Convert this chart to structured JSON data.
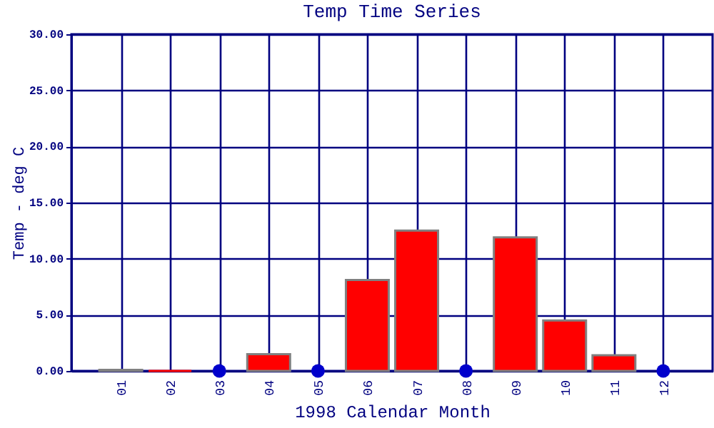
{
  "chart_data": {
    "type": "bar",
    "title": "Temp Time Series",
    "xlabel": "1998 Calendar Month",
    "ylabel": "Temp - deg C",
    "categories": [
      "01",
      "02",
      "03",
      "04",
      "05",
      "06",
      "07",
      "08",
      "09",
      "10",
      "11",
      "12"
    ],
    "series": [
      {
        "color": "#ff0000",
        "values": [
          0.1,
          0,
          null,
          1.5,
          null,
          8.1,
          12.5,
          null,
          11.9,
          4.5,
          1.4,
          null
        ]
      },
      {
        "type": "scatter",
        "color": "#0000cc",
        "marker": "circle",
        "values": [
          null,
          null,
          0,
          null,
          0,
          null,
          null,
          0,
          null,
          null,
          null,
          0
        ]
      }
    ],
    "ylim": [
      0,
      30
    ],
    "yticks": [
      {
        "value": 0,
        "label": "0.00"
      },
      {
        "value": 5,
        "label": "5.00"
      },
      {
        "value": 10,
        "label": "10.00"
      },
      {
        "value": 15,
        "label": "15.00"
      },
      {
        "value": 20,
        "label": "20.00"
      },
      {
        "value": 25,
        "label": "25.00"
      },
      {
        "value": 30,
        "label": "30.00"
      }
    ],
    "grid": true
  }
}
